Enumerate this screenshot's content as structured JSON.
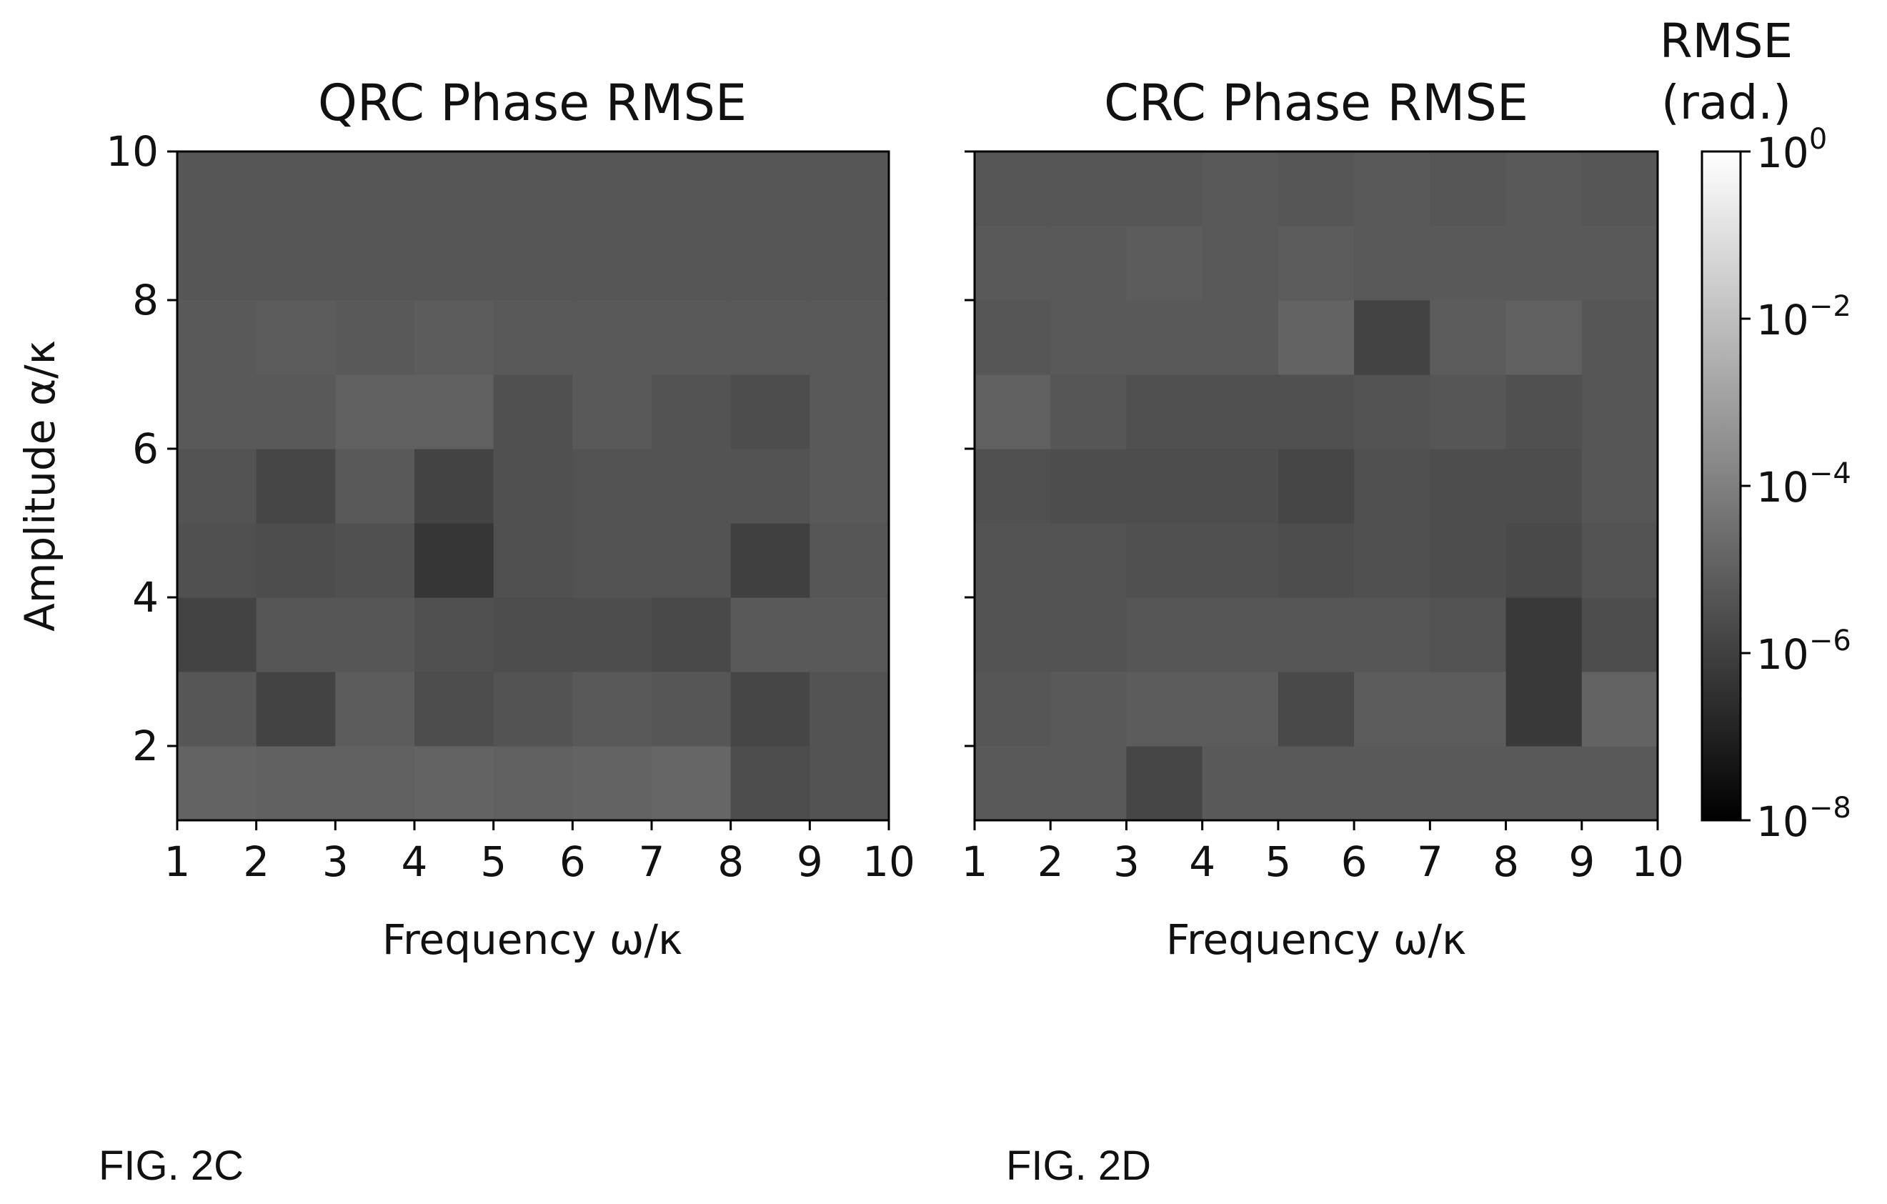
{
  "chart_data": [
    {
      "type": "heatmap",
      "title": "QRC Phase RMSE",
      "xlabel": "Frequency ω/κ",
      "ylabel": "Amplitude α/κ",
      "x_ticks": [
        1,
        2,
        3,
        4,
        5,
        6,
        7,
        8,
        9,
        10
      ],
      "y_ticks": [
        2,
        4,
        6,
        8,
        10
      ],
      "xlim": [
        1,
        10
      ],
      "ylim": [
        1,
        10
      ],
      "scale": "log",
      "value_unit": "rad.",
      "x_cells": [
        1,
        2,
        3,
        4,
        5,
        6,
        7,
        8,
        9
      ],
      "y_cells": [
        1,
        2,
        3,
        4,
        5,
        6,
        7,
        8,
        9
      ],
      "values_log10": [
        [
          -4.9,
          -5.0,
          -5.0,
          -4.9,
          -5.0,
          -4.9,
          -4.8,
          -5.6,
          -5.4
        ],
        [
          -5.3,
          -5.9,
          -5.1,
          -5.6,
          -5.4,
          -5.2,
          -5.3,
          -5.8,
          -5.4
        ],
        [
          -5.9,
          -5.3,
          -5.3,
          -5.5,
          -5.6,
          -5.6,
          -5.7,
          -5.2,
          -5.2
        ],
        [
          -5.5,
          -5.6,
          -5.5,
          -6.3,
          -5.5,
          -5.4,
          -5.4,
          -6.0,
          -5.3
        ],
        [
          -5.4,
          -5.8,
          -5.2,
          -5.9,
          -5.5,
          -5.4,
          -5.4,
          -5.4,
          -5.2
        ],
        [
          -5.2,
          -5.2,
          -5.0,
          -5.0,
          -5.5,
          -5.2,
          -5.4,
          -5.6,
          -5.2
        ],
        [
          -5.2,
          -5.1,
          -5.2,
          -5.1,
          -5.2,
          -5.2,
          -5.2,
          -5.2,
          -5.2
        ],
        [
          -5.3,
          -5.3,
          -5.3,
          -5.3,
          -5.3,
          -5.3,
          -5.3,
          -5.3,
          -5.3
        ],
        [
          -5.3,
          -5.3,
          -5.3,
          -5.3,
          -5.3,
          -5.3,
          -5.3,
          -5.3,
          -5.3
        ]
      ]
    },
    {
      "type": "heatmap",
      "title": "CRC Phase RMSE",
      "xlabel": "Frequency ω/κ",
      "ylabel": "",
      "x_ticks": [
        1,
        2,
        3,
        4,
        5,
        6,
        7,
        8,
        9,
        10
      ],
      "y_ticks": [
        2,
        4,
        6,
        8,
        10
      ],
      "xlim": [
        1,
        10
      ],
      "ylim": [
        1,
        10
      ],
      "scale": "log",
      "value_unit": "rad.",
      "x_cells": [
        1,
        2,
        3,
        4,
        5,
        6,
        7,
        8,
        9
      ],
      "y_cells": [
        1,
        2,
        3,
        4,
        5,
        6,
        7,
        8,
        9
      ],
      "values_log10": [
        [
          -5.2,
          -5.2,
          -5.8,
          -5.2,
          -5.2,
          -5.2,
          -5.2,
          -5.2,
          -5.2
        ],
        [
          -5.3,
          -5.2,
          -5.1,
          -5.1,
          -5.7,
          -5.1,
          -5.1,
          -6.2,
          -4.9
        ],
        [
          -5.4,
          -5.4,
          -5.3,
          -5.3,
          -5.3,
          -5.3,
          -5.4,
          -6.2,
          -5.6
        ],
        [
          -5.4,
          -5.4,
          -5.5,
          -5.5,
          -5.6,
          -5.5,
          -5.6,
          -5.7,
          -5.4
        ],
        [
          -5.5,
          -5.6,
          -5.6,
          -5.6,
          -5.8,
          -5.5,
          -5.6,
          -5.6,
          -5.3
        ],
        [
          -5.0,
          -5.3,
          -5.5,
          -5.5,
          -5.5,
          -5.4,
          -5.3,
          -5.5,
          -5.3
        ],
        [
          -5.3,
          -5.2,
          -5.2,
          -5.2,
          -4.9,
          -5.9,
          -5.1,
          -5.0,
          -5.3
        ],
        [
          -5.2,
          -5.2,
          -5.1,
          -5.2,
          -5.1,
          -5.2,
          -5.2,
          -5.2,
          -5.2
        ],
        [
          -5.3,
          -5.3,
          -5.3,
          -5.2,
          -5.3,
          -5.2,
          -5.3,
          -5.2,
          -5.3
        ]
      ]
    }
  ],
  "colorbar": {
    "title_line1": "RMSE",
    "title_line2": "(rad.)",
    "ticks": [
      {
        "base": "10",
        "exp": "0",
        "value": 0
      },
      {
        "base": "10",
        "exp": "−2",
        "value": -2
      },
      {
        "base": "10",
        "exp": "−4",
        "value": -4
      },
      {
        "base": "10",
        "exp": "−6",
        "value": -6
      },
      {
        "base": "10",
        "exp": "−8",
        "value": -8
      }
    ],
    "range_log10": [
      -8,
      0
    ],
    "colormap": "gray"
  },
  "captions": {
    "left": "FIG. 2C",
    "right": "FIG. 2D"
  }
}
